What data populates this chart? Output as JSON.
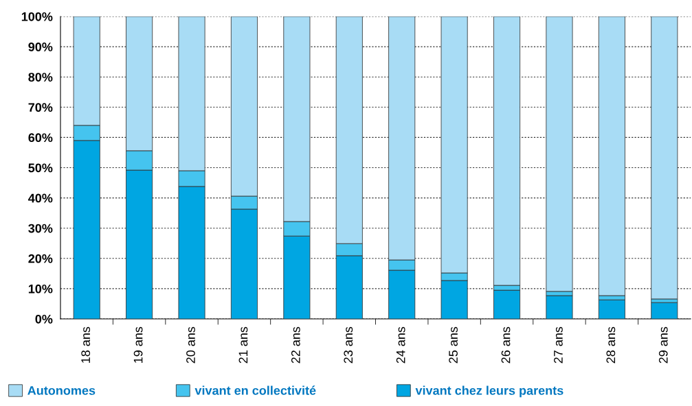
{
  "chart_data": {
    "type": "bar",
    "stacked": true,
    "categories": [
      "18 ans",
      "19 ans",
      "20 ans",
      "21 ans",
      "22 ans",
      "23 ans",
      "24 ans",
      "25 ans",
      "26 ans",
      "27 ans",
      "28 ans",
      "29 ans"
    ],
    "series": [
      {
        "name": "vivant chez leurs parents",
        "color": "#00a6e2",
        "values": [
          59,
          49.2,
          43.8,
          36.3,
          27.4,
          20.9,
          16.1,
          12.7,
          9.5,
          7.7,
          6.3,
          5.4
        ]
      },
      {
        "name": "vivant en collectivité",
        "color": "#45c4ef",
        "values": [
          5,
          6.4,
          5.2,
          4.3,
          4.8,
          4,
          3.4,
          2.5,
          1.6,
          1.4,
          1.4,
          1.2
        ]
      },
      {
        "name": "Autonomes",
        "color": "#a8dcf5",
        "values": [
          36,
          44.4,
          51,
          59.4,
          67.8,
          75.1,
          80.5,
          84.8,
          88.9,
          90.9,
          92.3,
          93.4
        ]
      }
    ],
    "ylim": [
      0,
      100
    ],
    "yticks": [
      {
        "value": 0,
        "label": "0%"
      },
      {
        "value": 10,
        "label": "10%"
      },
      {
        "value": 20,
        "label": "20%"
      },
      {
        "value": 30,
        "label": "30%"
      },
      {
        "value": 40,
        "label": "40%"
      },
      {
        "value": 50,
        "label": "50%"
      },
      {
        "value": 60,
        "label": "60%"
      },
      {
        "value": 70,
        "label": "70%"
      },
      {
        "value": 80,
        "label": "80%"
      },
      {
        "value": 90,
        "label": "90%"
      },
      {
        "value": 100,
        "label": "100%"
      }
    ],
    "grid": "y",
    "legend": "bottom left"
  }
}
